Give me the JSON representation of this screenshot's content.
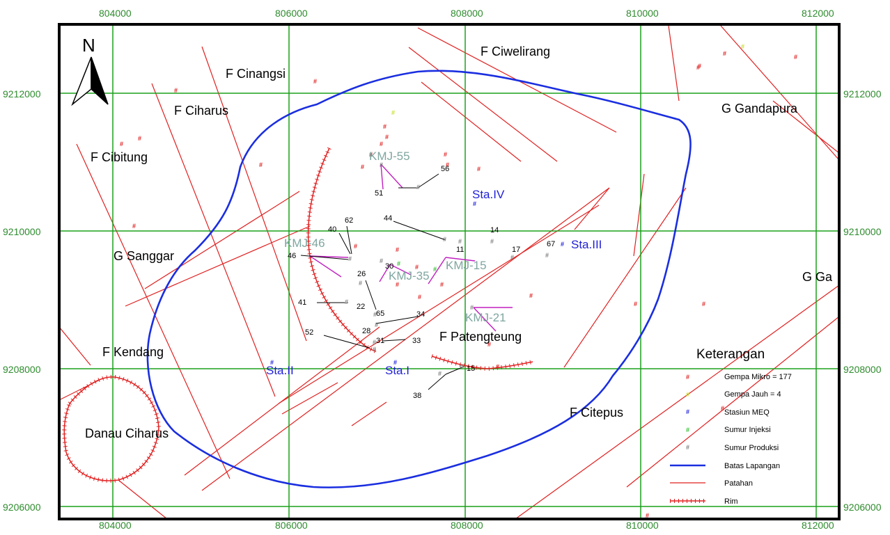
{
  "map": {
    "x_ticks": [
      "804000",
      "806000",
      "808000",
      "810000",
      "812000"
    ],
    "y_ticks": [
      "9212000",
      "9210000",
      "9208000",
      "9206000"
    ],
    "north_label": "N"
  },
  "places": {
    "f_cinangsi": "F Cinangsi",
    "f_ciharus": "F Ciharus",
    "f_cibitung": "F Cibitung",
    "f_ciwelirang": "F Ciwelirang",
    "g_gandapura": "G Gandapura",
    "g_sanggar": "G Sanggar",
    "g_ga": "G Ga",
    "f_kendang": "F Kendang",
    "f_patengteung": "F Patengteung",
    "f_citepus": "F Citepus",
    "danau_ciharus": "Danau Ciharus"
  },
  "stations": {
    "sta_i": "Sta.I",
    "sta_ii": "Sta.II",
    "sta_iii": "Sta.III",
    "sta_iv": "Sta.IV"
  },
  "wells": {
    "kmj55": "KMJ-55",
    "kmj46": "KMJ-46",
    "kmj35": "KMJ-35",
    "kmj15": "KMJ-15",
    "kmj21": "KMJ-21"
  },
  "well_numbers": {
    "n56": "56",
    "n51": "51",
    "n44": "44",
    "n62": "62",
    "n40": "40",
    "n46": "46",
    "n14": "14",
    "n11": "11",
    "n17": "17",
    "n67": "67",
    "n26": "26",
    "n30": "30",
    "n41": "41",
    "n22": "22",
    "n65": "65",
    "n34": "34",
    "n28": "28",
    "n52": "52",
    "n31": "31",
    "n33": "33",
    "n15": "15",
    "n38": "38"
  },
  "legend": {
    "title": "Keterangan",
    "items": [
      {
        "label": "Gempa Mikro = 177",
        "color": "#e02020",
        "type": "marker"
      },
      {
        "label": "Gempa Jauh = 4",
        "color": "#c8e030",
        "type": "marker"
      },
      {
        "label": "Stasiun MEQ",
        "color": "#2020e0",
        "type": "marker"
      },
      {
        "label": "Sumur Injeksi",
        "color": "#30c030",
        "type": "marker"
      },
      {
        "label": "Sumur Produksi",
        "color": "#808080",
        "type": "marker"
      },
      {
        "label": "Batas Lapangan",
        "color": "#1a2ee0",
        "type": "line"
      },
      {
        "label": "Patahan",
        "color": "#e02020",
        "type": "line"
      },
      {
        "label": "Rim",
        "color": "#e02020",
        "type": "rim"
      }
    ]
  },
  "colors": {
    "grid": "#1aa01a",
    "frame": "#000000",
    "boundary": "#1a2ee0",
    "fault": "#e02020",
    "well_track": "#c020c0",
    "tick_text": "#2e8b2e"
  }
}
